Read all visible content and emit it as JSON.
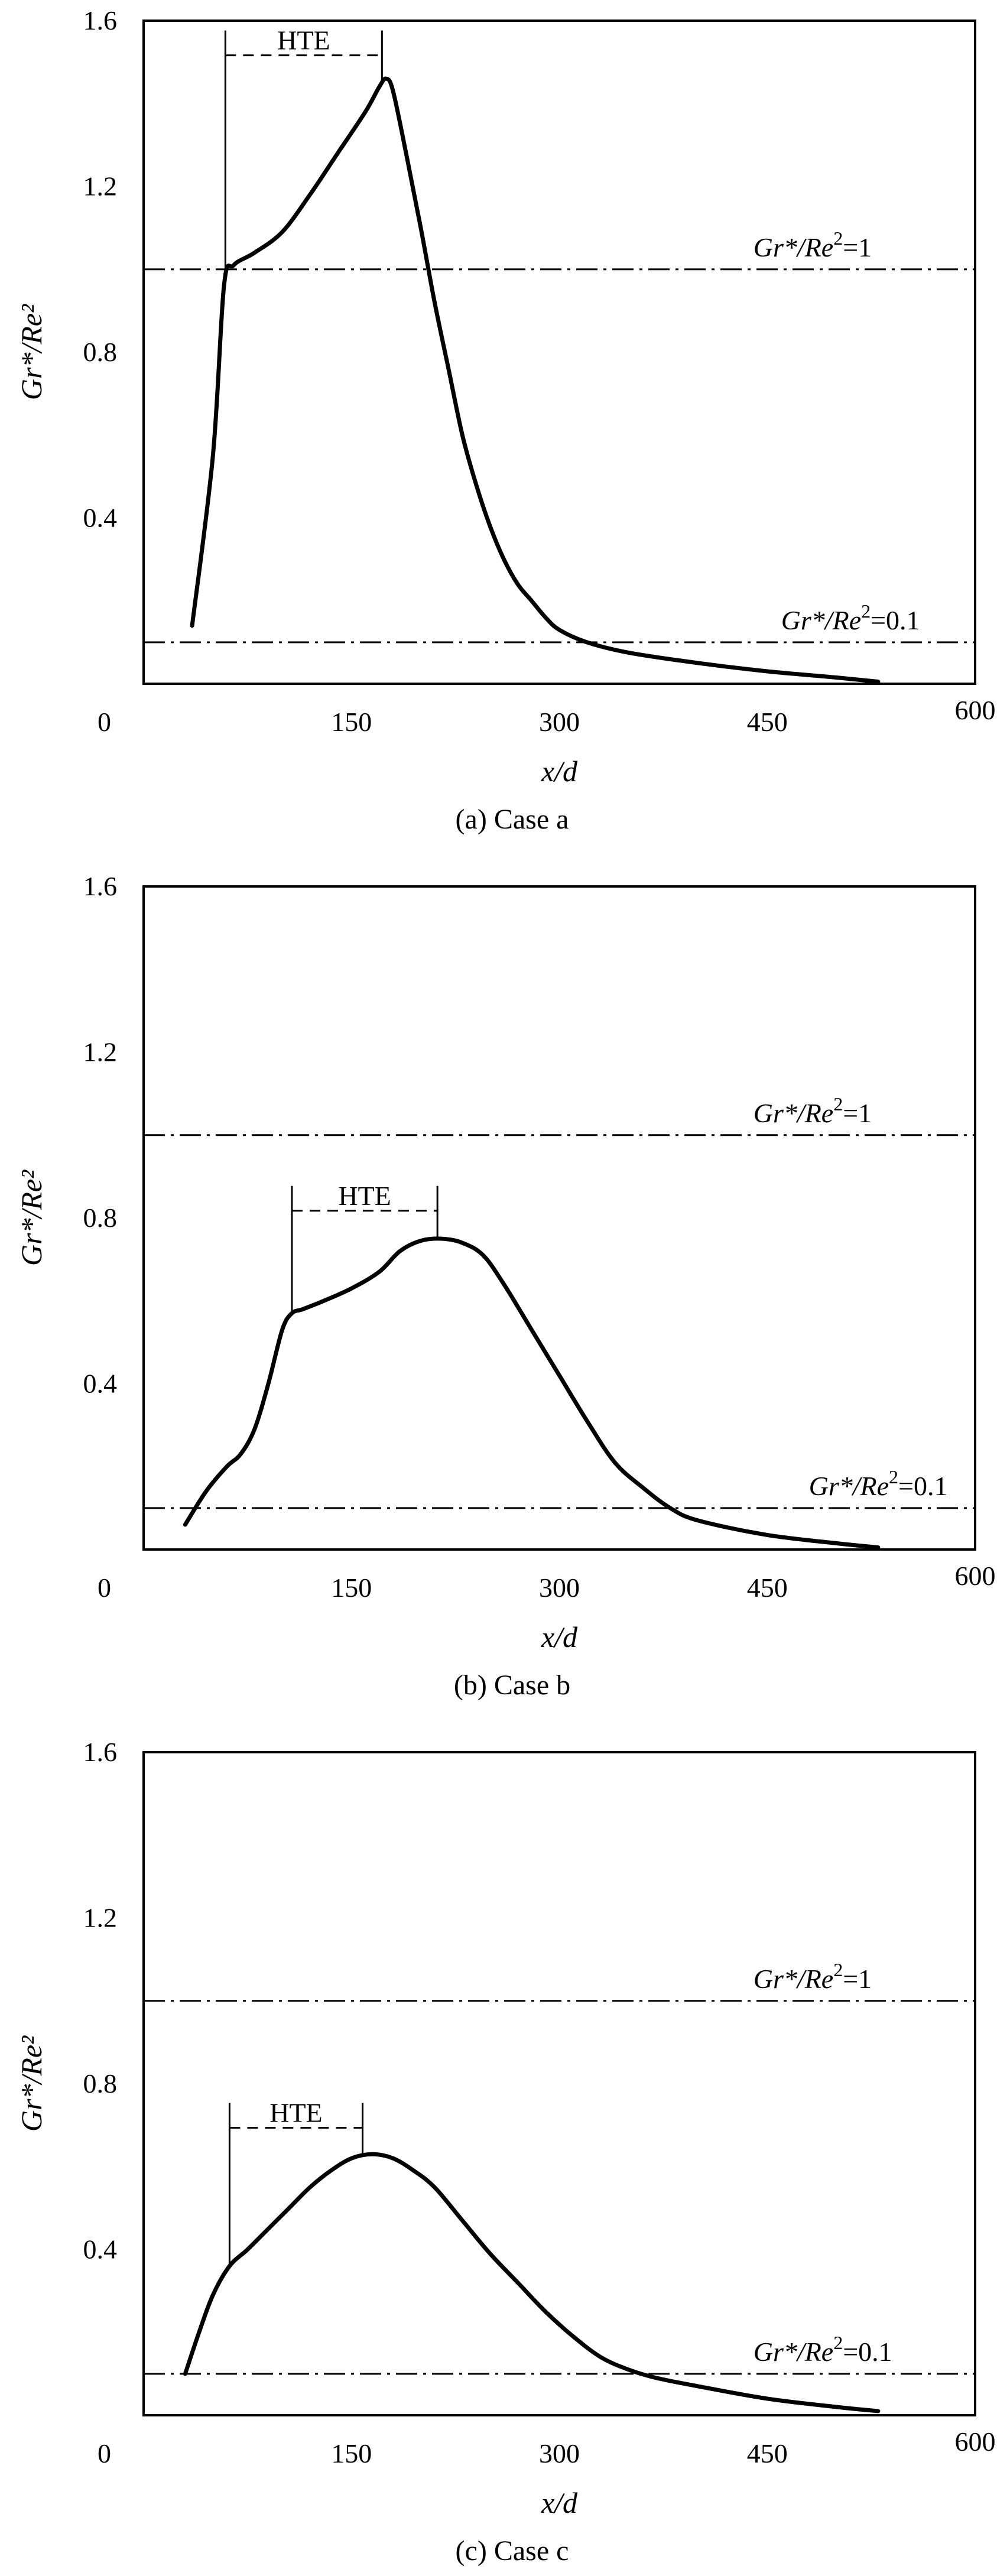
{
  "chart_data": [
    {
      "type": "line",
      "title": "",
      "caption": "(a) Case a",
      "xlabel": "x/d",
      "ylabel": "Gr*/Re²",
      "xlim": [
        0,
        600
      ],
      "ylim": [
        0,
        1.6
      ],
      "x_ticks": [
        "0",
        "150",
        "300",
        "450",
        "600"
      ],
      "y_ticks": [
        "0.4",
        "0.8",
        "1.2",
        "1.6"
      ],
      "reference_lines": [
        {
          "y": 1.0,
          "label_italic": "Gr*/Re",
          "label_sup": "2",
          "label_tail": "=1",
          "label_x": 440
        },
        {
          "y": 0.1,
          "label_italic": "Gr*/Re",
          "label_sup": "2",
          "label_tail": "=0.1",
          "label_x": 460
        }
      ],
      "hte": {
        "label": "HTE",
        "x_start": 59,
        "x_end": 172
      },
      "series": [
        {
          "x": [
            35,
            50,
            58,
            65,
            80,
            100,
            120,
            140,
            160,
            170,
            175,
            180,
            190,
            200,
            210,
            220,
            230,
            240,
            250,
            260,
            270,
            280,
            290,
            300,
            320,
            350,
            400,
            450,
            500,
            530
          ],
          "y": [
            0.14,
            0.55,
            0.96,
            1.01,
            1.04,
            1.09,
            1.18,
            1.28,
            1.38,
            1.44,
            1.46,
            1.43,
            1.27,
            1.1,
            0.92,
            0.76,
            0.6,
            0.48,
            0.38,
            0.3,
            0.24,
            0.2,
            0.16,
            0.13,
            0.1,
            0.075,
            0.05,
            0.03,
            0.015,
            0.005
          ]
        }
      ]
    },
    {
      "type": "line",
      "title": "",
      "caption": "(b) Case b",
      "xlabel": "x/d",
      "ylabel": "Gr*/Re²",
      "xlim": [
        0,
        600
      ],
      "ylim": [
        0,
        1.6
      ],
      "x_ticks": [
        "0",
        "150",
        "300",
        "450",
        "600"
      ],
      "y_ticks": [
        "0.4",
        "0.8",
        "1.2",
        "1.6"
      ],
      "reference_lines": [
        {
          "y": 1.0,
          "label_italic": "Gr*/Re",
          "label_sup": "2",
          "label_tail": "=1",
          "label_x": 440
        },
        {
          "y": 0.1,
          "label_italic": "Gr*/Re",
          "label_sup": "2",
          "label_tail": "=0.1",
          "label_x": 480
        }
      ],
      "hte": {
        "label": "HTE",
        "x_start": 107,
        "x_end": 212
      },
      "series": [
        {
          "x": [
            30,
            45,
            60,
            70,
            80,
            90,
            100,
            107,
            115,
            130,
            150,
            170,
            185,
            200,
            215,
            230,
            245,
            260,
            280,
            300,
            320,
            340,
            360,
            380,
            400,
            450,
            500,
            530
          ],
          "y": [
            0.06,
            0.14,
            0.2,
            0.23,
            0.29,
            0.4,
            0.53,
            0.57,
            0.58,
            0.6,
            0.63,
            0.67,
            0.72,
            0.745,
            0.75,
            0.74,
            0.71,
            0.64,
            0.53,
            0.42,
            0.31,
            0.21,
            0.15,
            0.1,
            0.07,
            0.035,
            0.015,
            0.005
          ]
        }
      ]
    },
    {
      "type": "line",
      "title": "",
      "caption": "(c) Case c",
      "xlabel": "x/d",
      "ylabel": "Gr*/Re²",
      "xlim": [
        0,
        600
      ],
      "ylim": [
        0,
        1.6
      ],
      "x_ticks": [
        "0",
        "150",
        "300",
        "450",
        "600"
      ],
      "y_ticks": [
        "0.4",
        "0.8",
        "1.2",
        "1.6"
      ],
      "reference_lines": [
        {
          "y": 1.0,
          "label_italic": "Gr*/Re",
          "label_sup": "2",
          "label_tail": "=1",
          "label_x": 440
        },
        {
          "y": 0.1,
          "label_italic": "Gr*/Re",
          "label_sup": "2",
          "label_tail": "=0.1",
          "label_x": 440
        }
      ],
      "hte": {
        "label": "HTE",
        "x_start": 62,
        "x_end": 158
      },
      "series": [
        {
          "x": [
            30,
            40,
            50,
            62,
            75,
            90,
            105,
            120,
            135,
            150,
            165,
            180,
            195,
            210,
            230,
            250,
            270,
            290,
            310,
            330,
            350,
            370,
            400,
            450,
            500,
            530
          ],
          "y": [
            0.1,
            0.2,
            0.29,
            0.36,
            0.4,
            0.45,
            0.5,
            0.55,
            0.59,
            0.62,
            0.63,
            0.62,
            0.59,
            0.55,
            0.47,
            0.39,
            0.32,
            0.25,
            0.19,
            0.14,
            0.11,
            0.09,
            0.07,
            0.04,
            0.02,
            0.01
          ]
        }
      ]
    }
  ]
}
